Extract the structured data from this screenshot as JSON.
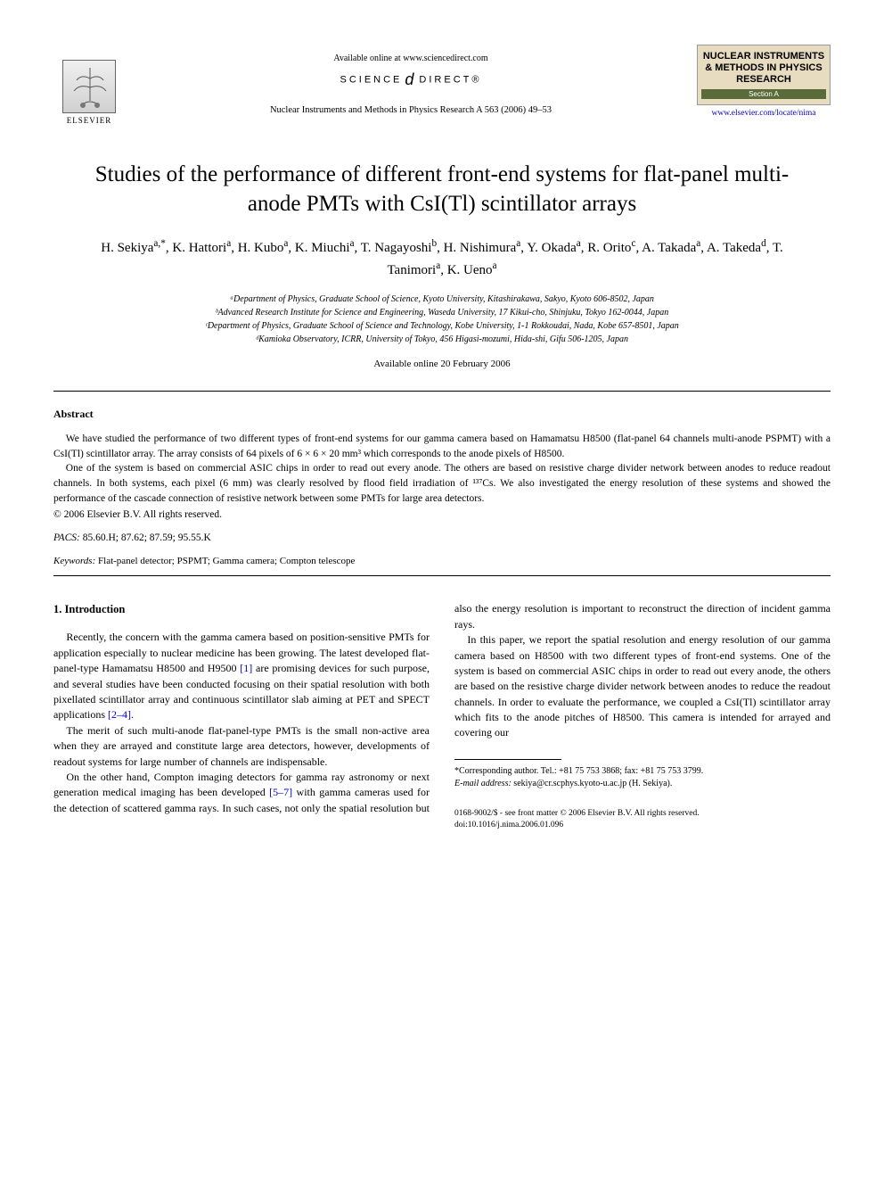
{
  "header": {
    "availability": "Available online at www.sciencedirect.com",
    "science_direct": "SCIENCE",
    "science_direct_end": "DIRECT®",
    "journal_ref": "Nuclear Instruments and Methods in Physics Research A 563 (2006) 49–53",
    "elsevier_label": "ELSEVIER",
    "journal_box_title": "NUCLEAR INSTRUMENTS & METHODS IN PHYSICS RESEARCH",
    "journal_box_section": "Section A",
    "journal_link": "www.elsevier.com/locate/nima"
  },
  "title": "Studies of the performance of different front-end systems for flat-panel multi-anode PMTs with CsI(Tl) scintillator arrays",
  "authors_html": "H. Sekiya<sup>a,*</sup>, K. Hattori<sup>a</sup>, H. Kubo<sup>a</sup>, K. Miuchi<sup>a</sup>, T. Nagayoshi<sup>b</sup>, H. Nishimura<sup>a</sup>, Y. Okada<sup>a</sup>, R. Orito<sup>c</sup>, A. Takada<sup>a</sup>, A. Takeda<sup>d</sup>, T. Tanimori<sup>a</sup>, K. Ueno<sup>a</sup>",
  "affiliations": [
    "ᵃDepartment of Physics, Graduate School of Science, Kyoto University, Kitashirakawa, Sakyo, Kyoto 606-8502, Japan",
    "ᵇAdvanced Research Institute for Science and Engineering, Waseda University, 17 Kikui-cho, Shinjuku, Tokyo 162-0044, Japan",
    "ᶜDepartment of Physics, Graduate School of Science and Technology, Kobe University, 1-1 Rokkoudai, Nada, Kobe 657-8501, Japan",
    "ᵈKamioka Observatory, ICRR, University of Tokyo, 456 Higasi-mozumi, Hida-shi, Gifu 506-1205, Japan"
  ],
  "available_date": "Available online 20 February 2006",
  "abstract": {
    "heading": "Abstract",
    "p1": "We have studied the performance of two different types of front-end systems for our gamma camera based on Hamamatsu H8500 (flat-panel 64 channels multi-anode PSPMT) with a CsI(Tl) scintillator array. The array consists of 64 pixels of 6 × 6 × 20 mm³ which corresponds to the anode pixels of H8500.",
    "p2": "One of the system is based on commercial ASIC chips in order to read out every anode. The others are based on resistive charge divider network between anodes to reduce readout channels. In both systems, each pixel (6 mm) was clearly resolved by flood field irradiation of ¹³⁷Cs. We also investigated the energy resolution of these systems and showed the performance of the cascade connection of resistive network between some PMTs for large area detectors.",
    "copyright": "© 2006 Elsevier B.V. All rights reserved.",
    "pacs_label": "PACS:",
    "pacs": "85.60.H; 87.62; 87.59; 95.55.K",
    "keywords_label": "Keywords:",
    "keywords": "Flat-panel detector; PSPMT; Gamma camera; Compton telescope"
  },
  "intro": {
    "heading": "1. Introduction",
    "p1_a": "Recently, the concern with the gamma camera based on position-sensitive PMTs for application especially to nuclear medicine has been growing. The latest developed flat-panel-type Hamamatsu H8500 and H9500 ",
    "ref1": "[1]",
    "p1_b": " are promising devices for such purpose, and several studies have been conducted focusing on their spatial resolution with both pixellated scintillator array and continuous scintillator slab aiming at PET and SPECT applications ",
    "ref24": "[2–4]",
    "p1_c": ".",
    "p2": "The merit of such multi-anode flat-panel-type PMTs is the small non-active area when they are arrayed and constitute large area detectors, however, developments of readout systems for large number of channels are indispensable.",
    "p3_a": "On the other hand, Compton imaging detectors for gamma ray astronomy or next generation medical imaging has been developed ",
    "ref57": "[5–7]",
    "p3_b": " with gamma cameras used for the detection of scattered gamma rays. In such cases, not only the spatial resolution but also the energy resolution is important to reconstruct the direction of incident gamma rays.",
    "p4": "In this paper, we report the spatial resolution and energy resolution of our gamma camera based on H8500 with two different types of front-end systems. One of the system is based on commercial ASIC chips in order to read out every anode, the others are based on the resistive charge divider network between anodes to reduce the readout channels. In order to evaluate the performance, we coupled a CsI(Tl) scintillator array which fits to the anode pitches of H8500. This camera is intended for arrayed and covering our"
  },
  "footnote": {
    "corr": "*Corresponding author. Tel.: +81 75 753 3868; fax: +81 75 753 3799.",
    "email_label": "E-mail address:",
    "email": "sekiya@cr.scphys.kyoto-u.ac.jp (H. Sekiya)."
  },
  "footer": {
    "front_matter": "0168-9002/$ - see front matter © 2006 Elsevier B.V. All rights reserved.",
    "doi": "doi:10.1016/j.nima.2006.01.096"
  },
  "colors": {
    "text": "#000000",
    "link": "#0000cc",
    "journal_box_bg": "#e8dcc0",
    "section_bg": "#5a6b3a"
  }
}
